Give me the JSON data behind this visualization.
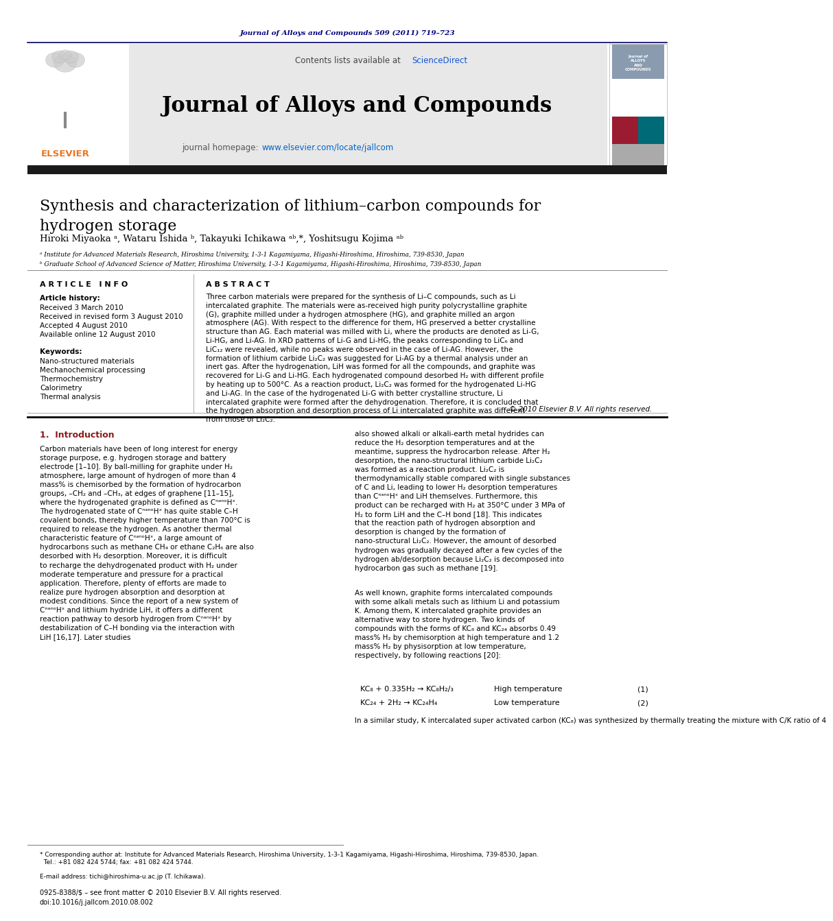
{
  "journal_ref": "Journal of Alloys and Compounds 509 (2011) 719–723",
  "journal_name": "Journal of Alloys and Compounds",
  "sciencedirect_text": "Contents lists available at ",
  "sciencedirect_link": "ScienceDirect",
  "journal_homepage_prefix": "journal homepage: ",
  "journal_homepage_link": "www.elsevier.com/locate/jallcom",
  "title": "Synthesis and characterization of lithium–carbon compounds for\nhydrogen storage",
  "authors": "Hiroki Miyaoka ᵃ, Wataru Ishida ᵇ, Takayuki Ichikawa ᵃᵇ,*, Yoshitsugu Kojima ᵃᵇ",
  "affil_a": "ᵃ Institute for Advanced Materials Research, Hiroshima University, 1-3-1 Kagamiyama, Higashi-Hiroshima, Hiroshima, 739-8530, Japan",
  "affil_b": "ᵇ Graduate School of Advanced Science of Matter, Hiroshima University, 1-3-1 Kagamiyama, Higashi-Hiroshima, Hiroshima, 739-8530, Japan",
  "article_info_title": "A R T I C L E   I N F O",
  "article_history_label": "Article history:",
  "received1": "Received 3 March 2010",
  "received_revised": "Received in revised form 3 August 2010",
  "accepted": "Accepted 4 August 2010",
  "available": "Available online 12 August 2010",
  "keywords_label": "Keywords:",
  "keywords": [
    "Nano-structured materials",
    "Mechanochemical processing",
    "Thermochemistry",
    "Calorimetry",
    "Thermal analysis"
  ],
  "abstract_title": "A B S T R A C T",
  "abstract_text": "Three carbon materials were prepared for the synthesis of Li–C compounds, such as Li intercalated graphite. The materials were as-received high purity polycrystalline graphite (G), graphite milled under a hydrogen atmosphere (HG), and graphite milled an argon atmosphere (AG). With respect to the difference for them, HG preserved a better crystalline structure than AG. Each material was milled with Li, where the products are denoted as Li-G, Li-HG, and Li-AG. In XRD patterns of Li-G and Li-HG, the peaks corresponding to LiC₆ and LiC₁₂ were revealed, while no peaks were observed in the case of Li-AG. However, the formation of lithium carbide Li₂C₂ was suggested for Li-AG by a thermal analysis under an inert gas. After the hydrogenation, LiH was formed for all the compounds, and graphite was recovered for Li-G and Li-HG. Each hydrogenated compound desorbed H₂ with different profile by heating up to 500°C. As a reaction product, Li₂C₂ was formed for the hydrogenated Li-HG and Li-AG. In the case of the hydrogenated Li-G with better crystalline structure, Li intercalated graphite were formed after the dehydrogenation. Therefore, it is concluded that the hydrogen absorption and desorption process of Li intercalated graphite was different from those of Li₂C₂.",
  "copyright": "© 2010 Elsevier B.V. All rights reserved.",
  "intro_title": "1.  Introduction",
  "intro_col1": "Carbon materials have been of long interest for energy storage purpose, e.g. hydrogen storage and battery electrode [1–10]. By ball-milling for graphite under H₂ atmosphere, large amount of hydrogen of more than 4 mass% is chemisorbed by the formation of hydrocarbon groups, –CH₂ and –CH₃, at edges of graphene [11–15], where the hydrogenated graphite is defined as CⁿᵃⁿᵒHˣ. The hydrogenated state of CⁿᵃⁿᵒHˣ has quite stable C–H covalent bonds, thereby higher temperature than 700°C is required to release the hydrogen. As another thermal characteristic feature of CⁿᵃⁿᵒHˣ, a large amount of hydrocarbons such as methane CH₄ or ethane C₂H₆ are also desorbed with H₂ desorption. Moreover, it is difficult to recharge the dehydrogenated product with H₂ under moderate temperature and pressure for a practical application. Therefore, plenty of efforts are made to realize pure hydrogen absorption and desorption at modest conditions. Since the report of a new system of CⁿᵃⁿᵒHˣ and lithium hydride LiH, it offers a different reaction pathway to desorb hydrogen from CⁿᵃⁿᵒHˣ by destabilization of C–H bonding via the interaction with LiH [16,17]. Later studies",
  "intro_col2_p1": "also showed alkali or alkali-earth metal hydrides can reduce the H₂ desorption temperatures and at the meantime, suppress the hydrocarbon release. After H₂ desorption, the nano-structural lithium carbide Li₂C₂ was formed as a reaction product. Li₂C₂ is thermodynamically stable compared with single substances of C and Li, leading to lower H₂ desorption temperatures than CⁿᵃⁿᵒHˣ and LiH themselves. Furthermore, this product can be recharged with H₂ at 350°C under 3 MPa of H₂ to form LiH and the C–H bond [18]. This indicates that the reaction path of hydrogen absorption and desorption is changed by the formation of nano-structural Li₂C₂. However, the amount of desorbed hydrogen was gradually decayed after a few cycles of the hydrogen ab/desorption because Li₂C₂ is decomposed into hydrocarbon gas such as methane [19].",
  "intro_col2_p2": "As well known, graphite forms intercalated compounds with some alkali metals such as lithium Li and potassium K. Among them, K intercalated graphite provides an alternative way to store hydrogen. Two kinds of compounds with the forms of KC₈ and KC₂₄ absorbs 0.49 mass% H₂ by chemisorption at high temperature and 1.2 mass% H₂ by physisorption at low temperature, respectively, by following reactions [20]:",
  "eq1_left": "KC₈ + 0.335H₂ → KC₈H₂/₃",
  "eq1_right": "High temperature",
  "eq1_num": "(1)",
  "eq2_left": "KC₂₄ + 2H₂ → KC₂₄H₄",
  "eq2_right": "Low temperature",
  "eq2_num": "(2)",
  "intro_col2_cont": "In a similar study, K intercalated super activated carbon (KC₈) was synthesized by thermally treating the mixture with C/K ratio of 4",
  "footnote_star": "* Corresponding author at: Institute for Advanced Materials Research, Hiroshima University, 1-3-1 Kagamiyama, Higashi-Hiroshima, Hiroshima, 739-8530, Japan.\n  Tel.: +81 082 424 5744; fax: +81 082 424 5744.",
  "footnote_email": "E-mail address: tichi@hiroshima-u.ac.jp (T. Ichikawa).",
  "issn": "0925-8388/$ – see front matter © 2010 Elsevier B.V. All rights reserved.",
  "doi": "doi:10.1016/j.jallcom.2010.08.002",
  "colors": {
    "dark_navy": "#000080",
    "elsevier_orange": "#E87722",
    "science_direct_blue": "#1155CC",
    "link_blue": "#0066CC",
    "header_bg": "#E8E8E8",
    "thick_bar": "#1a1a1a",
    "intro_title_color": "#8B1A1A"
  }
}
